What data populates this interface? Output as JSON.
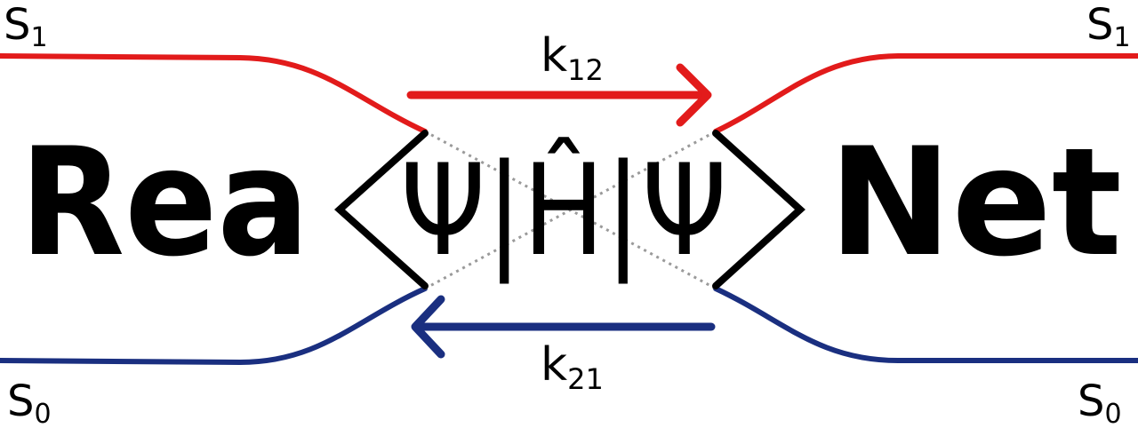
{
  "logo": {
    "word_left": "Rea",
    "word_right": "Net",
    "bra_ket": "Ψ|Ĥ|Ψ",
    "state_top_left": {
      "base": "S",
      "sub": "1"
    },
    "state_top_right": {
      "base": "S",
      "sub": "1"
    },
    "state_bottom_left": {
      "base": "S",
      "sub": "0"
    },
    "state_bottom_right": {
      "base": "S",
      "sub": "0"
    },
    "rate_forward": {
      "base": "k",
      "sub": "12"
    },
    "rate_backward": {
      "base": "k",
      "sub": "21"
    }
  },
  "colors": {
    "upper_state": "#e21b1b",
    "lower_state": "#1a2f80",
    "ink": "#000000",
    "dotted": "#9a9a9a"
  }
}
